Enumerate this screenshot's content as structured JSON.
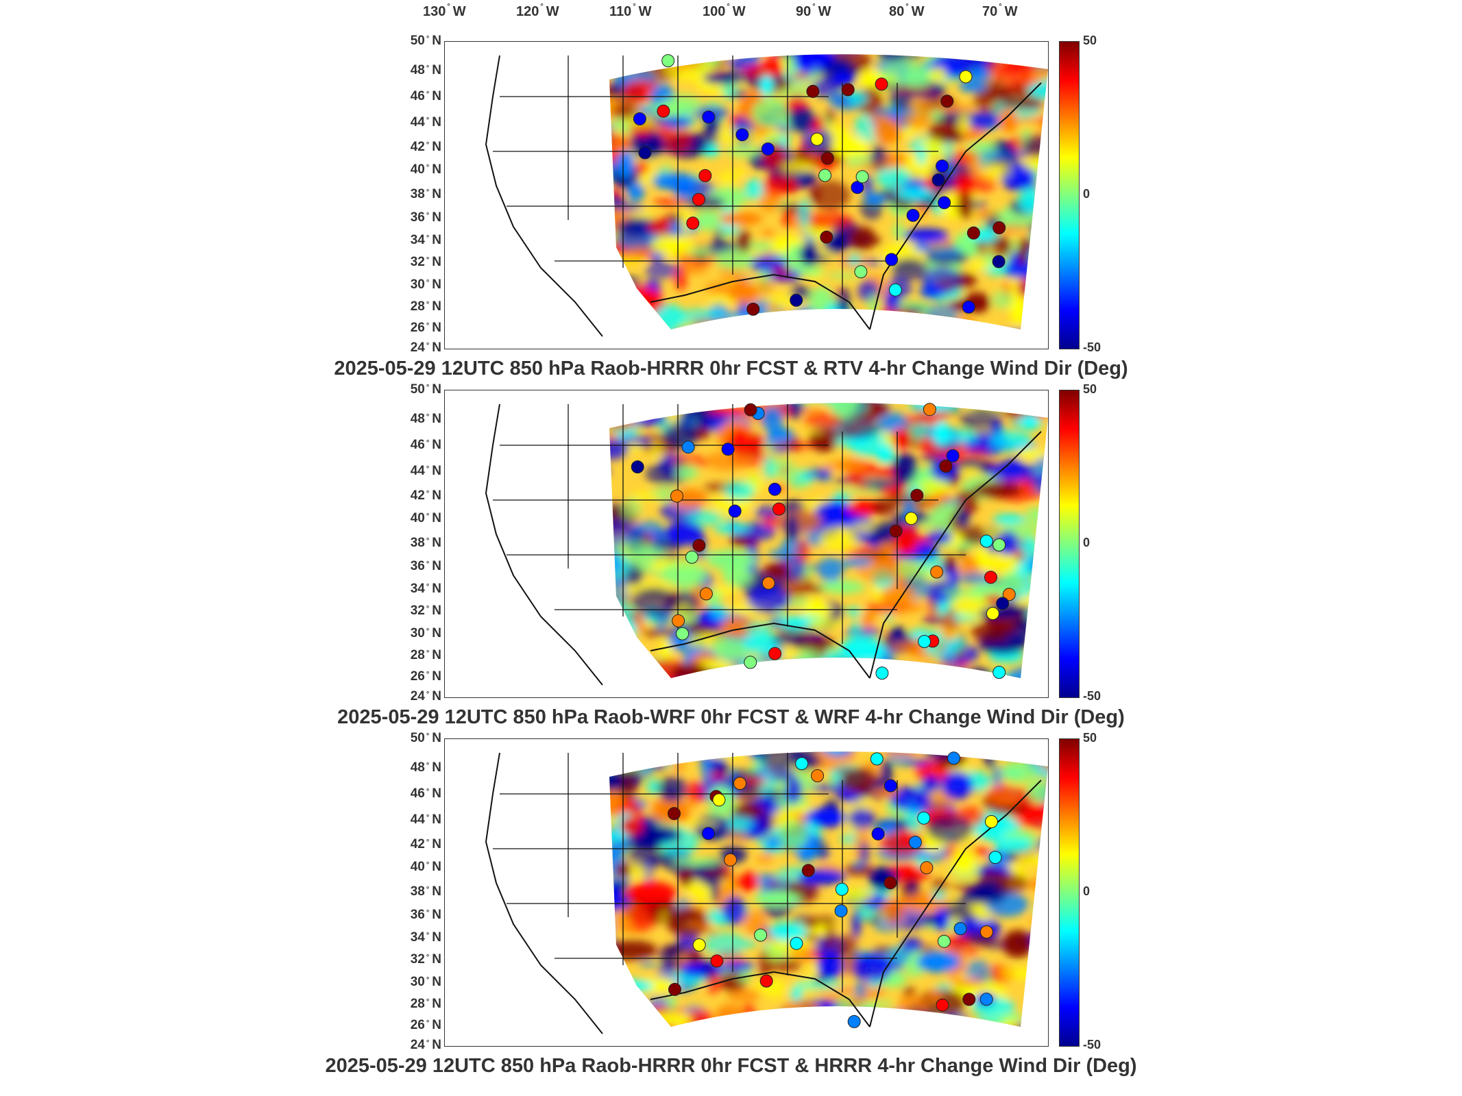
{
  "lon_labels": [
    "130° W",
    "120° W",
    "110° W",
    "100° W",
    "90° W",
    "80° W",
    "70° W"
  ],
  "lat_labels": [
    "50° N",
    "48° N",
    "46° N",
    "44° N",
    "42° N",
    "40° N",
    "38° N",
    "36° N",
    "34° N",
    "32° N",
    "30° N",
    "28° N",
    "26° N",
    "24° N"
  ],
  "colorbar": {
    "max_label": "50",
    "zero_label": "0",
    "min_label": "-50",
    "colormap": [
      "#00008f",
      "#0000ff",
      "#0080ff",
      "#00ffff",
      "#80ff80",
      "#ffff00",
      "#ff8000",
      "#ff0000",
      "#800000"
    ]
  },
  "panels": [
    {
      "title": "2025-05-29 12UTC 850 hPa Raob-HRRR 0hr FCST & RTV 4-hr Change Wind Dir (Deg)",
      "seed": 11
    },
    {
      "title": "2025-05-29 12UTC 850 hPa Raob-WRF 0hr FCST & WRF 4-hr Change Wind Dir (Deg)",
      "seed": 29
    },
    {
      "title": "2025-05-29 12UTC 850 hPa Raob-HRRR 0hr FCST & HRRR 4-hr Change Wind Dir (Deg)",
      "seed": 47
    }
  ]
}
